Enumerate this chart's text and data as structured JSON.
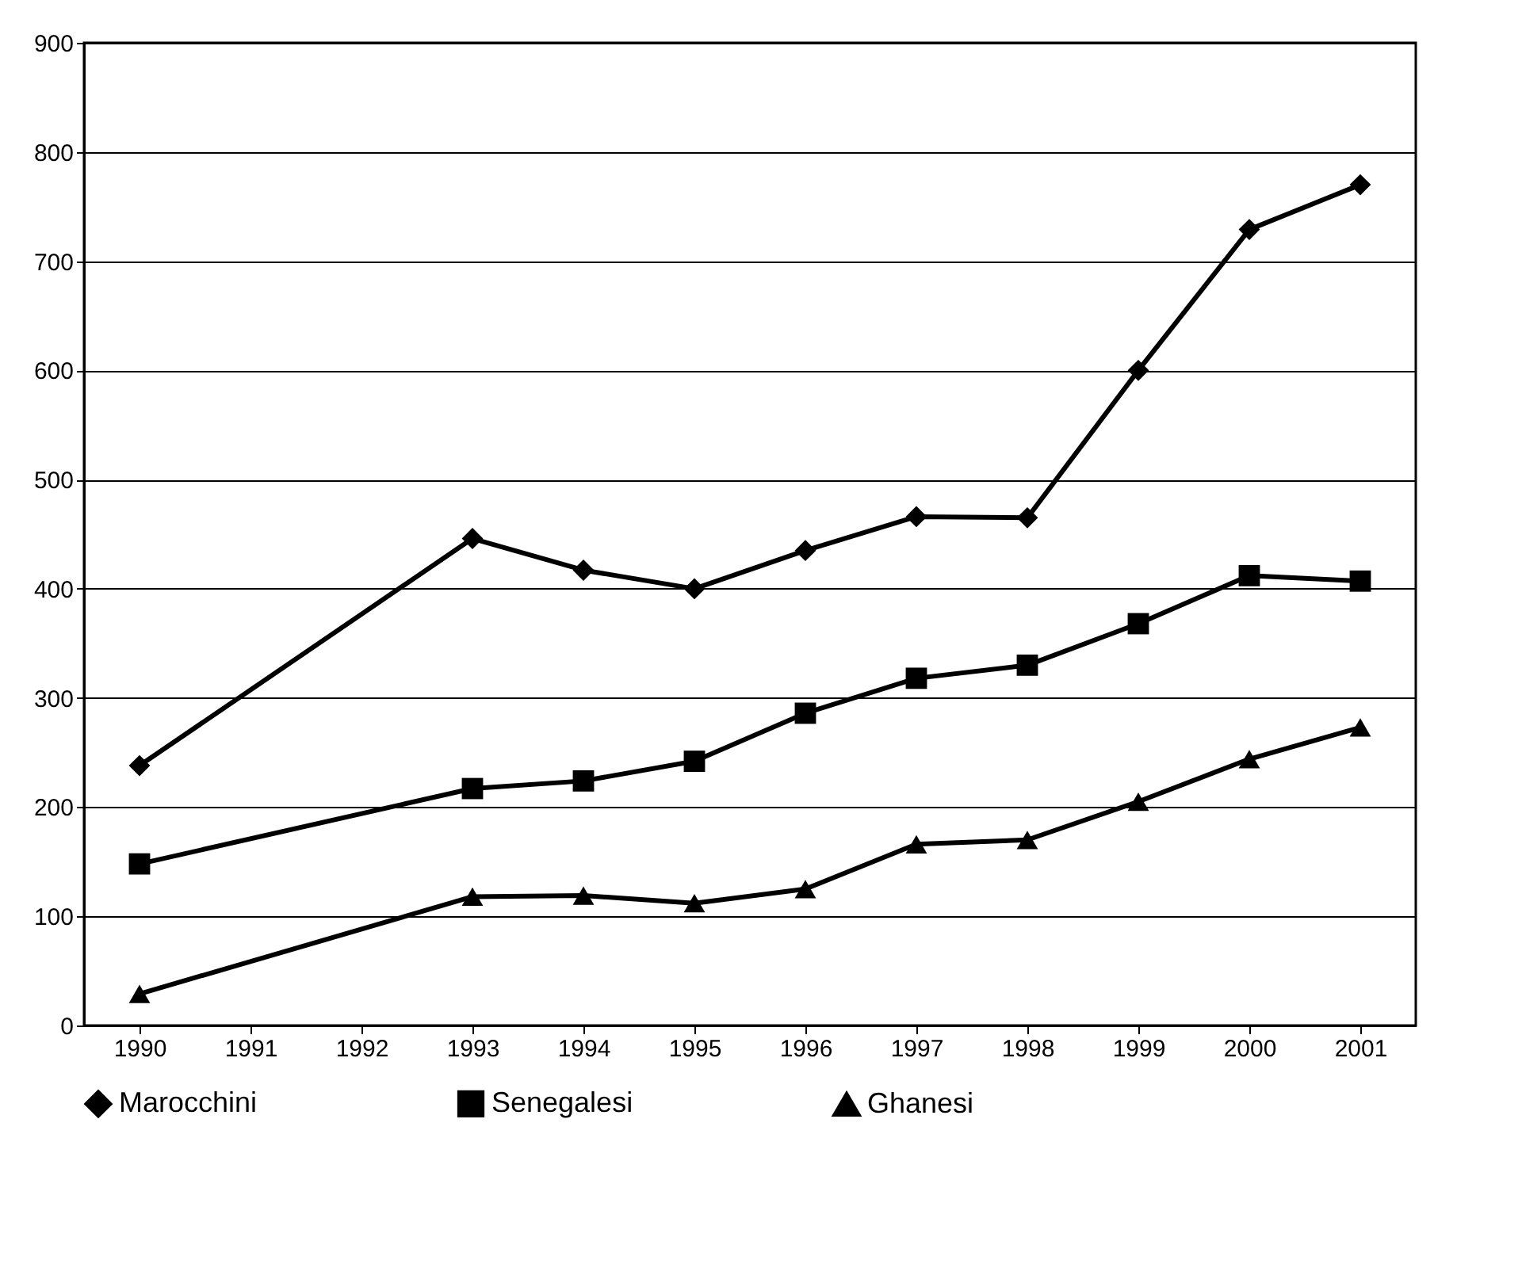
{
  "chart_data": {
    "type": "line",
    "categories": [
      "1990",
      "1991",
      "1992",
      "1993",
      "1994",
      "1995",
      "1996",
      "1997",
      "1998",
      "1999",
      "2000",
      "2001"
    ],
    "series": [
      {
        "name": "Marocchini",
        "color": "#000000",
        "marker": "diamond",
        "values": [
          238,
          null,
          null,
          446,
          417,
          400,
          435,
          466,
          465,
          600,
          729,
          770
        ]
      },
      {
        "name": "Senegalesi",
        "color": "#000000",
        "marker": "square",
        "values": [
          148,
          null,
          null,
          217,
          224,
          242,
          286,
          318,
          330,
          368,
          412,
          407
        ]
      },
      {
        "name": "Ghanesi",
        "color": "#000000",
        "marker": "triangle",
        "values": [
          29,
          null,
          null,
          118,
          119,
          112,
          125,
          166,
          170,
          205,
          244,
          273
        ]
      }
    ],
    "ylim": [
      0,
      900
    ],
    "yticks": [
      0,
      100,
      200,
      300,
      400,
      500,
      600,
      700,
      800,
      900
    ],
    "grid": "y",
    "legend": "bottom",
    "line_style": "solid"
  }
}
